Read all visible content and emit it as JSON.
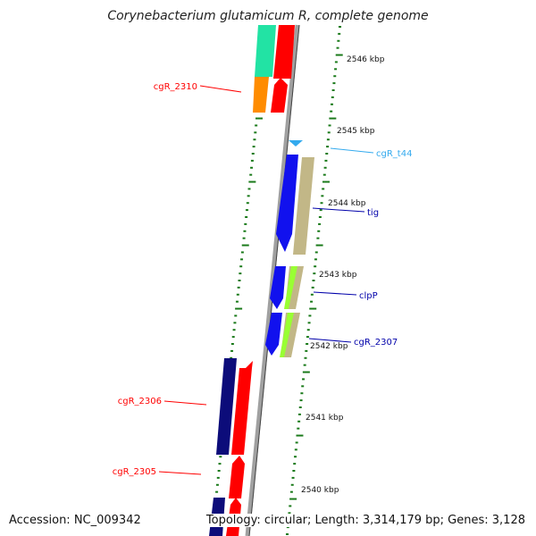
{
  "title": "Corynebacterium glutamicum R, complete genome",
  "footer": {
    "accession": "Accession: NC_009342",
    "topology": "Topology: circular; Length: 3,314,179 bp; Genes: 3,128"
  },
  "colors": {
    "backbone": "#a0a0a0",
    "ticks": "#1a7a1a",
    "red": "#ff0000",
    "navy": "#0c0c7a",
    "blue": "#1111ee",
    "tan": "#c2b787",
    "lime": "#99ff33",
    "teal": "#22e3a4",
    "orange": "#ff8c00",
    "cyan": "#33aaee"
  },
  "kbp_labels": [
    "2546 kbp",
    "2545 kbp",
    "2544 kbp",
    "2543 kbp",
    "2542 kbp",
    "2541 kbp",
    "2540 kbp"
  ],
  "features": [
    {
      "label": "cgR_2310",
      "color": "#ff0000"
    },
    {
      "label": "cgR_t44",
      "color": "#33aaee"
    },
    {
      "label": "tig",
      "color": "#0000aa"
    },
    {
      "label": "clpP",
      "color": "#0000aa"
    },
    {
      "label": "cgR_2307",
      "color": "#0000aa"
    },
    {
      "label": "cgR_2306",
      "color": "#ff0000"
    },
    {
      "label": "cgR_2305",
      "color": "#ff0000"
    }
  ]
}
